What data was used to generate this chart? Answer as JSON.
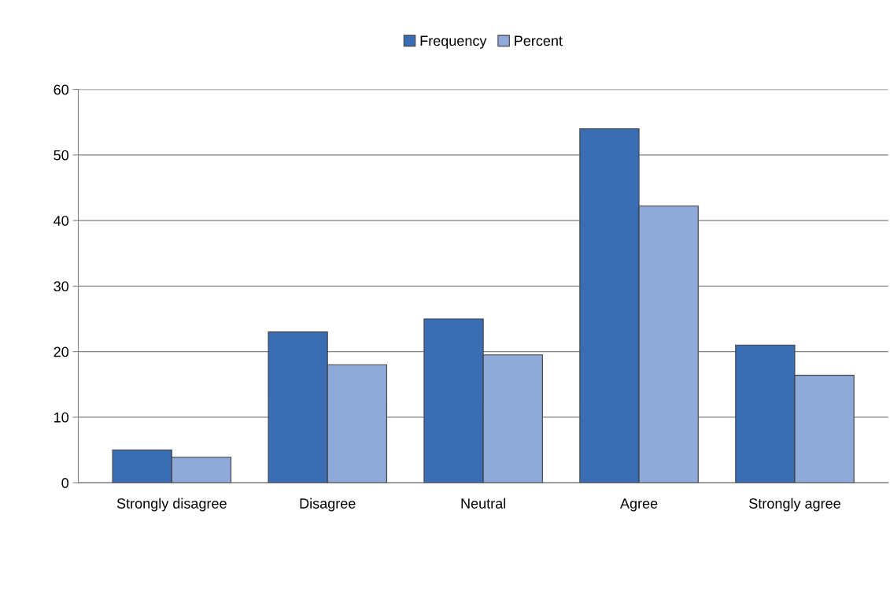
{
  "chart_data": {
    "type": "bar",
    "categories": [
      "Strongly disagree",
      "Disagree",
      "Neutral",
      "Agree",
      "Strongly agree"
    ],
    "series": [
      {
        "name": "Frequency",
        "color": "#3a6db4",
        "values": [
          5,
          23,
          25,
          54,
          21
        ]
      },
      {
        "name": "Percent",
        "color": "#8fa9d9",
        "values": [
          3.9,
          18.0,
          19.5,
          42.2,
          16.4
        ]
      }
    ],
    "ylim": [
      0,
      60
    ],
    "yticks": [
      0,
      10,
      20,
      30,
      40,
      50,
      60
    ],
    "grid": "y",
    "legend": "top"
  }
}
